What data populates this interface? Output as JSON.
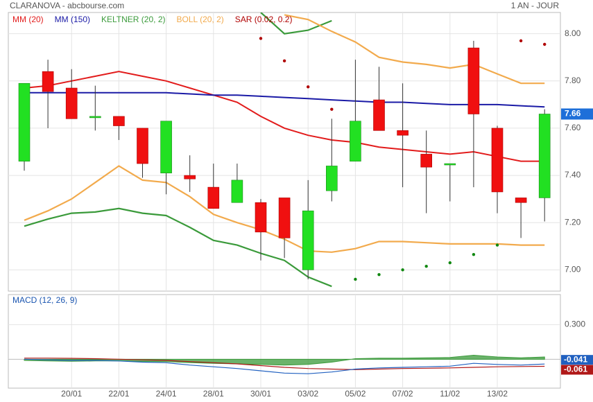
{
  "header": {
    "title": "CLARANOVA - abcbourse.com",
    "period": "1 AN - JOUR"
  },
  "chart_data": [
    {
      "type": "candlestick",
      "categories": [
        null,
        null,
        "20/01",
        null,
        "22/01",
        null,
        "24/01",
        null,
        "28/01",
        null,
        "30/01",
        null,
        "03/02",
        null,
        "05/02",
        null,
        "07/02",
        null,
        "11/02",
        null,
        "13/02",
        null,
        null
      ],
      "open": [
        7.46,
        7.84,
        7.77,
        7.65,
        7.65,
        7.6,
        7.41,
        7.4,
        7.35,
        7.285,
        7.285,
        7.305,
        7.0,
        7.335,
        7.46,
        7.72,
        7.59,
        7.49,
        7.45,
        7.94,
        7.6,
        7.305,
        7.305
      ],
      "high": [
        7.79,
        7.89,
        7.85,
        7.78,
        7.65,
        7.6,
        7.63,
        7.485,
        7.45,
        7.45,
        7.3,
        7.305,
        7.38,
        7.64,
        7.89,
        7.86,
        7.79,
        7.59,
        7.45,
        7.97,
        7.61,
        7.305,
        7.68
      ],
      "low": [
        7.42,
        7.6,
        7.64,
        7.59,
        7.55,
        7.39,
        7.32,
        7.33,
        7.26,
        7.285,
        7.04,
        7.05,
        6.96,
        7.29,
        7.46,
        7.59,
        7.35,
        7.24,
        7.29,
        7.35,
        7.24,
        7.135,
        7.205
      ],
      "close": [
        7.79,
        7.755,
        7.64,
        7.65,
        7.61,
        7.45,
        7.63,
        7.385,
        7.26,
        7.38,
        7.16,
        7.135,
        7.25,
        7.44,
        7.63,
        7.59,
        7.57,
        7.435,
        7.45,
        7.66,
        7.33,
        7.285,
        7.66
      ],
      "up_color": "#22e022",
      "down_color": "#f01010",
      "ylim": [
        6.91,
        8.09
      ],
      "yticks": [
        {
          "value": 7,
          "label": "7.00"
        },
        {
          "value": 7.2,
          "label": "7.20"
        },
        {
          "value": 7.4,
          "label": "7.40"
        },
        {
          "value": 7.6,
          "label": "7.60"
        },
        {
          "value": 7.8,
          "label": "7.80"
        },
        {
          "value": 8,
          "label": "8.00"
        }
      ],
      "grid": true,
      "series": [
        {
          "name": "MM (20)",
          "color": "#e21b1b",
          "values": [
            7.77,
            7.78,
            7.8,
            7.82,
            7.84,
            7.82,
            7.8,
            7.77,
            7.74,
            7.71,
            7.65,
            7.6,
            7.57,
            7.55,
            7.54,
            7.52,
            7.51,
            7.5,
            7.49,
            7.5,
            7.48,
            7.46,
            7.46
          ]
        },
        {
          "name": "MM (150)",
          "color": "#1a1aa6",
          "values": [
            7.75,
            7.75,
            7.75,
            7.75,
            7.75,
            7.75,
            7.75,
            7.745,
            7.74,
            7.74,
            7.735,
            7.73,
            7.725,
            7.72,
            7.715,
            7.71,
            7.71,
            7.705,
            7.7,
            7.7,
            7.7,
            7.695,
            7.69
          ]
        },
        {
          "name": "KELTNER (20, 2)",
          "color": "#3a9a3a",
          "upper": [
            null,
            null,
            null,
            null,
            null,
            null,
            null,
            null,
            null,
            null,
            8.09,
            8.0,
            8.015,
            8.055,
            null,
            null,
            null,
            null,
            null,
            null,
            null,
            null,
            null
          ],
          "lower": [
            7.185,
            7.215,
            7.24,
            7.245,
            7.26,
            7.24,
            7.23,
            7.18,
            7.125,
            7.105,
            7.07,
            7.04,
            6.97,
            6.93,
            null,
            null,
            null,
            null,
            null,
            null,
            null,
            null,
            null
          ]
        },
        {
          "name": "BOLL (20, 2)",
          "color": "#f2aa4c",
          "upper": [
            null,
            null,
            null,
            null,
            null,
            null,
            null,
            null,
            null,
            null,
            null,
            8.08,
            8.06,
            8.01,
            7.965,
            7.9,
            7.88,
            7.87,
            7.855,
            7.87,
            7.83,
            7.79,
            7.79
          ],
          "lower": [
            7.21,
            7.25,
            7.3,
            7.37,
            7.44,
            7.38,
            7.37,
            7.31,
            7.235,
            7.2,
            7.17,
            7.13,
            7.08,
            7.075,
            7.09,
            7.12,
            7.12,
            7.115,
            7.11,
            7.11,
            7.11,
            7.105,
            7.105
          ]
        },
        {
          "name": "SAR (0.02, 0.2)",
          "color": "#b00000",
          "below_color": "#118811",
          "values": [
            null,
            null,
            null,
            null,
            null,
            null,
            null,
            null,
            null,
            null,
            7.98,
            7.885,
            7.775,
            7.68,
            6.96,
            6.98,
            7.0,
            7.015,
            7.03,
            7.065,
            7.105,
            7.97,
            7.955
          ]
        }
      ]
    },
    {
      "type": "macd",
      "title": "MACD (12, 26, 9)",
      "ylim": [
        -0.25,
        0.56
      ],
      "yticks": [
        {
          "value": 0.3,
          "label": "0.300"
        }
      ],
      "macd_line": [
        0.0,
        -0.005,
        -0.01,
        -0.01,
        -0.015,
        -0.025,
        -0.03,
        -0.05,
        -0.065,
        -0.08,
        -0.1,
        -0.12,
        -0.125,
        -0.11,
        -0.085,
        -0.075,
        -0.07,
        -0.065,
        -0.06,
        -0.035,
        -0.045,
        -0.05,
        -0.041
      ],
      "signal_line": [
        0.01,
        0.01,
        0.008,
        0.005,
        0.0,
        -0.005,
        -0.01,
        -0.02,
        -0.03,
        -0.04,
        -0.055,
        -0.07,
        -0.08,
        -0.085,
        -0.09,
        -0.085,
        -0.08,
        -0.078,
        -0.075,
        -0.07,
        -0.065,
        -0.063,
        -0.061
      ],
      "histogram": [
        -0.01,
        -0.015,
        -0.018,
        -0.015,
        -0.015,
        -0.02,
        -0.02,
        -0.03,
        -0.035,
        -0.04,
        -0.045,
        -0.05,
        -0.045,
        -0.025,
        0.005,
        0.01,
        0.01,
        0.013,
        0.015,
        0.035,
        0.02,
        0.013,
        0.02
      ],
      "macd_color": "#2060c0",
      "signal_color": "#b01818",
      "histogram_color": "#3a9a3a"
    }
  ]
}
